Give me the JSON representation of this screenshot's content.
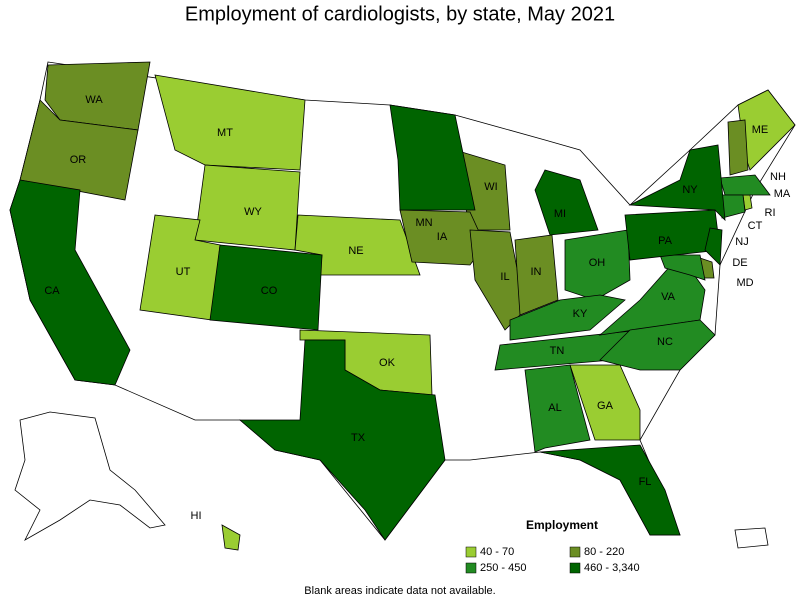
{
  "title": "Employment of cardiologists, by state, May 2021",
  "legend": {
    "title": "Employment",
    "items": [
      {
        "label": "40 - 70",
        "color": "#9acd32",
        "states": [
          "MT",
          "WY",
          "UT",
          "NE",
          "OK",
          "GA",
          "ME",
          "HI",
          "RI"
        ]
      },
      {
        "label": "80 - 220",
        "color": "#6b8e23",
        "states": [
          "WA",
          "OR",
          "WI",
          "IA",
          "IL",
          "IN",
          "NH",
          "DE"
        ]
      },
      {
        "label": "250 - 450",
        "color": "#228b22",
        "states": [
          "OH",
          "KY",
          "TN",
          "AL",
          "VA",
          "NC",
          "MA",
          "CT",
          "MD"
        ]
      },
      {
        "label": "460 - 3,340",
        "color": "#006400",
        "states": [
          "CA",
          "CO",
          "TX",
          "MN",
          "MI",
          "NY",
          "PA",
          "NJ",
          "FL"
        ]
      }
    ]
  },
  "footnote": "Blank areas indicate data not available."
}
